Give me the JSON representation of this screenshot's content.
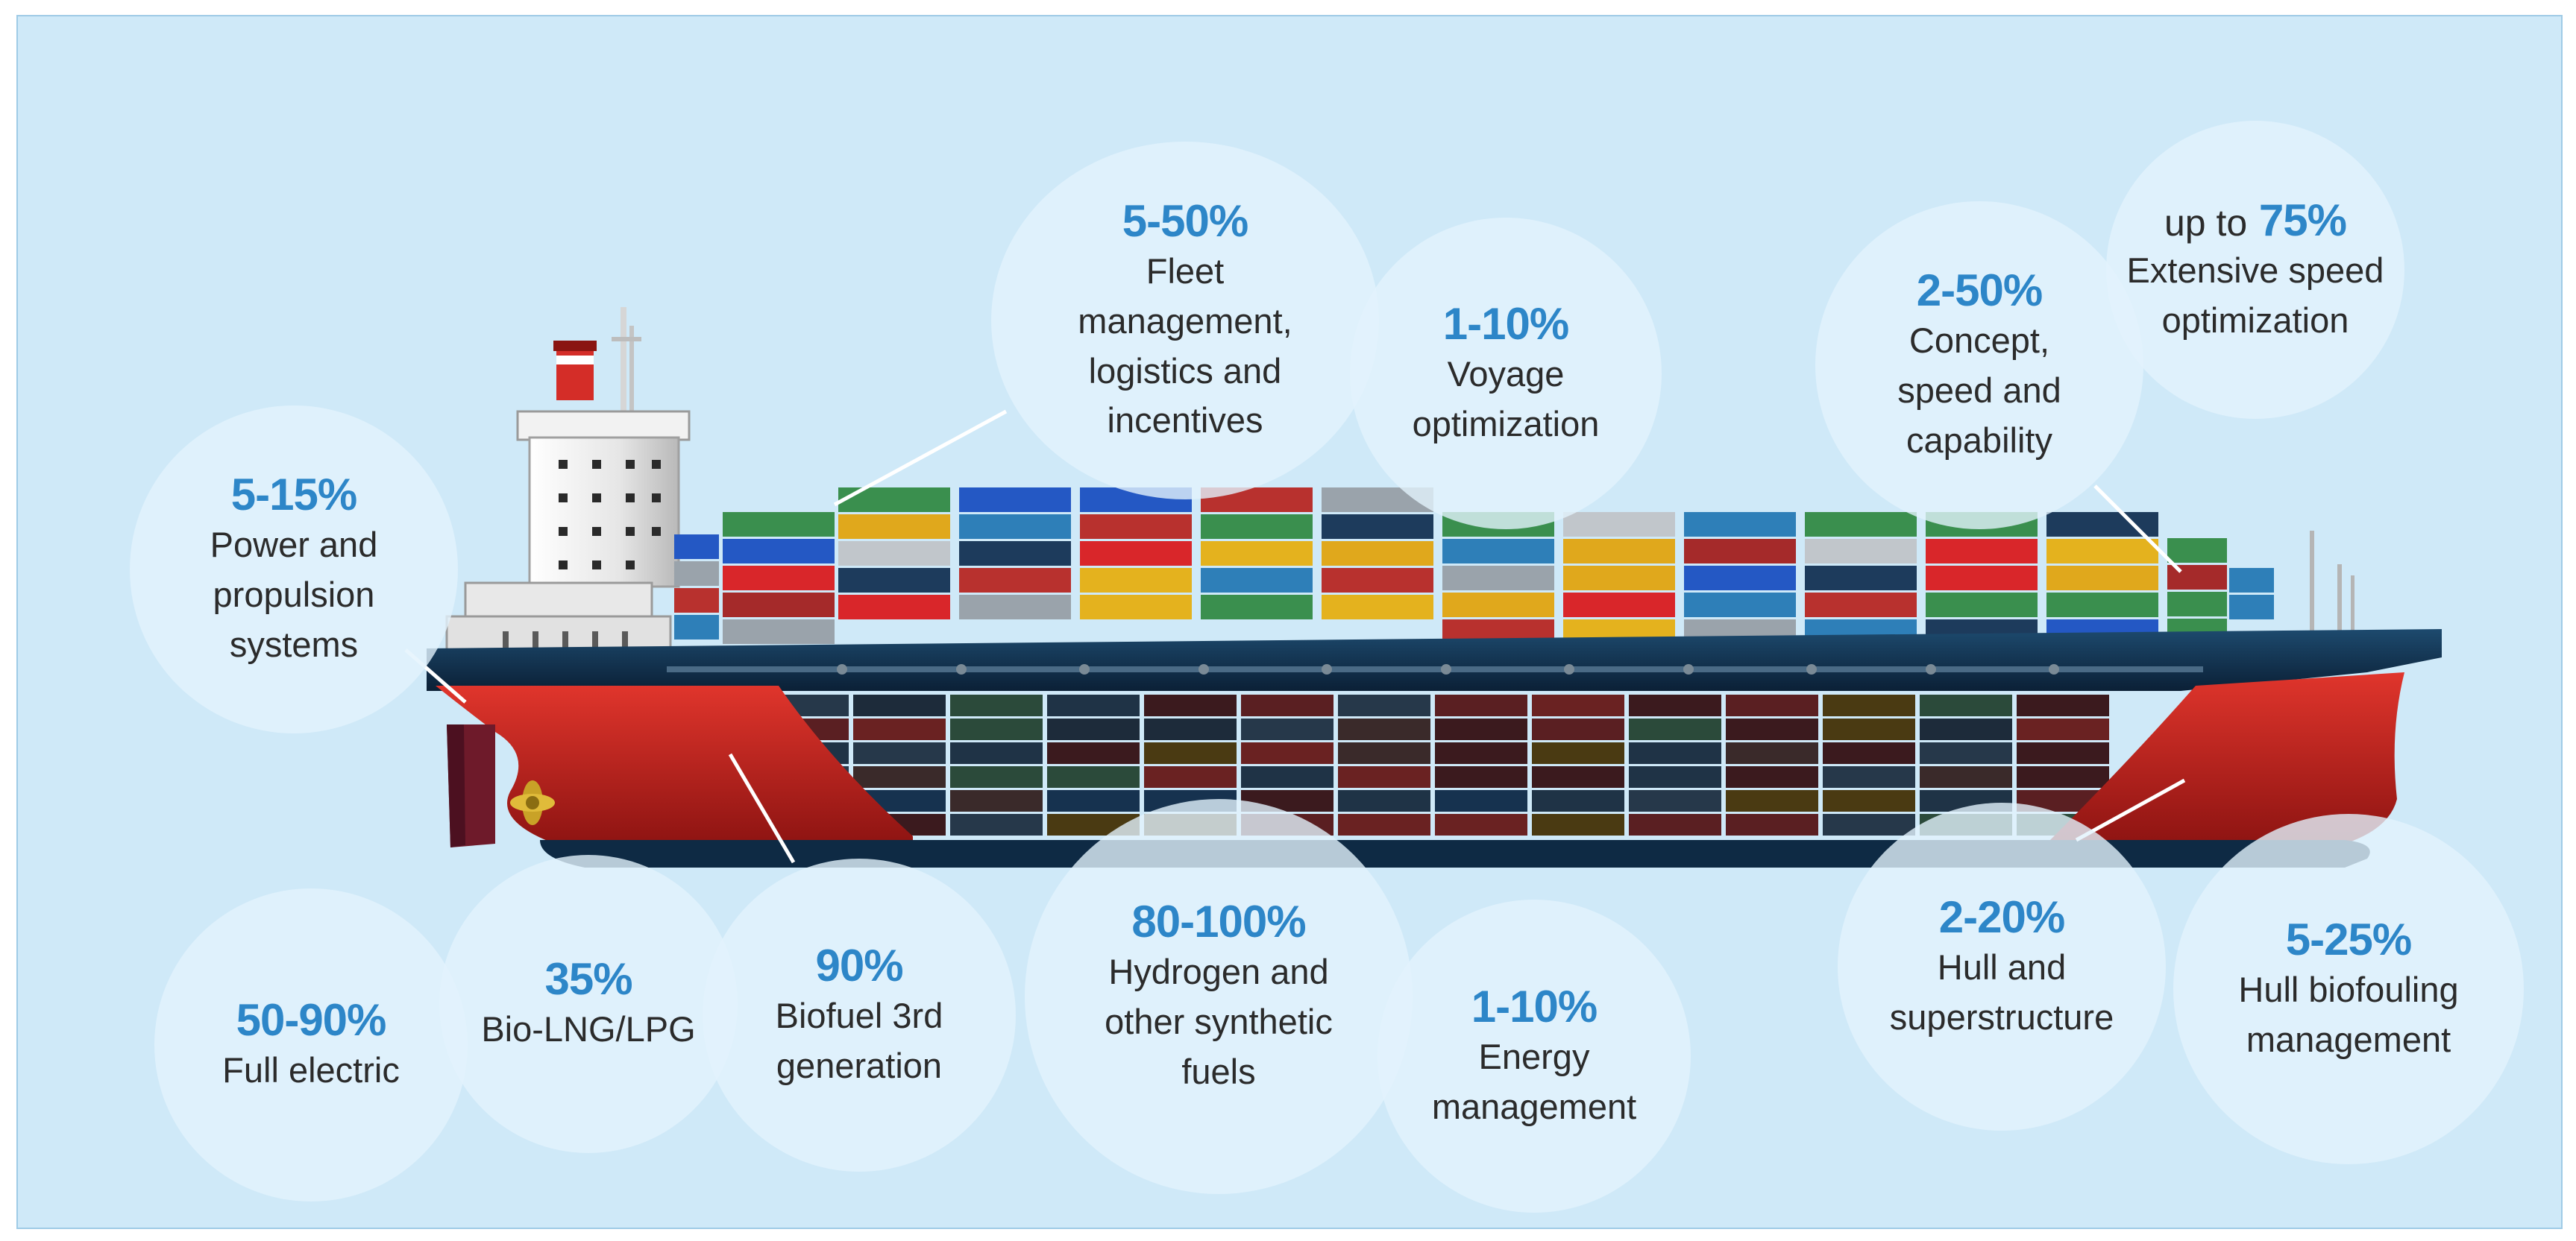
{
  "colors": {
    "background": "#cfe9f8",
    "percent_text": "#2d86c8",
    "hull_red": "#c8201e",
    "hull_dark": "#0e2a44",
    "bubble_fill": "#e2f2fc"
  },
  "measures": [
    {
      "id": "fleet",
      "percent": "5-50%",
      "label_lines": [
        "Fleet",
        "management,",
        "logistics and",
        "incentives"
      ]
    },
    {
      "id": "voyage",
      "percent": "1-10%",
      "label_lines": [
        "Voyage",
        "optimization"
      ]
    },
    {
      "id": "concept",
      "percent": "2-50%",
      "label_lines": [
        "Concept,",
        "speed and",
        "capability"
      ]
    },
    {
      "id": "speed",
      "prefix": "up to",
      "percent": "75%",
      "label_lines": [
        "Extensive speed",
        "optimization"
      ]
    },
    {
      "id": "power",
      "percent": "5-15%",
      "label_lines": [
        "Power and",
        "propulsion",
        "systems"
      ]
    },
    {
      "id": "electric",
      "percent": "50-90%",
      "label_lines": [
        "Full electric"
      ]
    },
    {
      "id": "biolng",
      "percent": "35%",
      "label_lines": [
        "Bio-LNG/LPG"
      ]
    },
    {
      "id": "biofuel",
      "percent": "90%",
      "label_lines": [
        "Biofuel 3rd",
        "generation"
      ]
    },
    {
      "id": "hydrogen",
      "percent": "80-100%",
      "label_lines": [
        "Hydrogen and",
        "other synthetic",
        "fuels"
      ]
    },
    {
      "id": "energy",
      "percent": "1-10%",
      "label_lines": [
        "Energy",
        "management"
      ]
    },
    {
      "id": "hull",
      "percent": "2-20%",
      "label_lines": [
        "Hull and",
        "superstructure"
      ]
    },
    {
      "id": "biofouling",
      "percent": "5-25%",
      "label_lines": [
        "Hull biofouling",
        "management"
      ]
    }
  ]
}
